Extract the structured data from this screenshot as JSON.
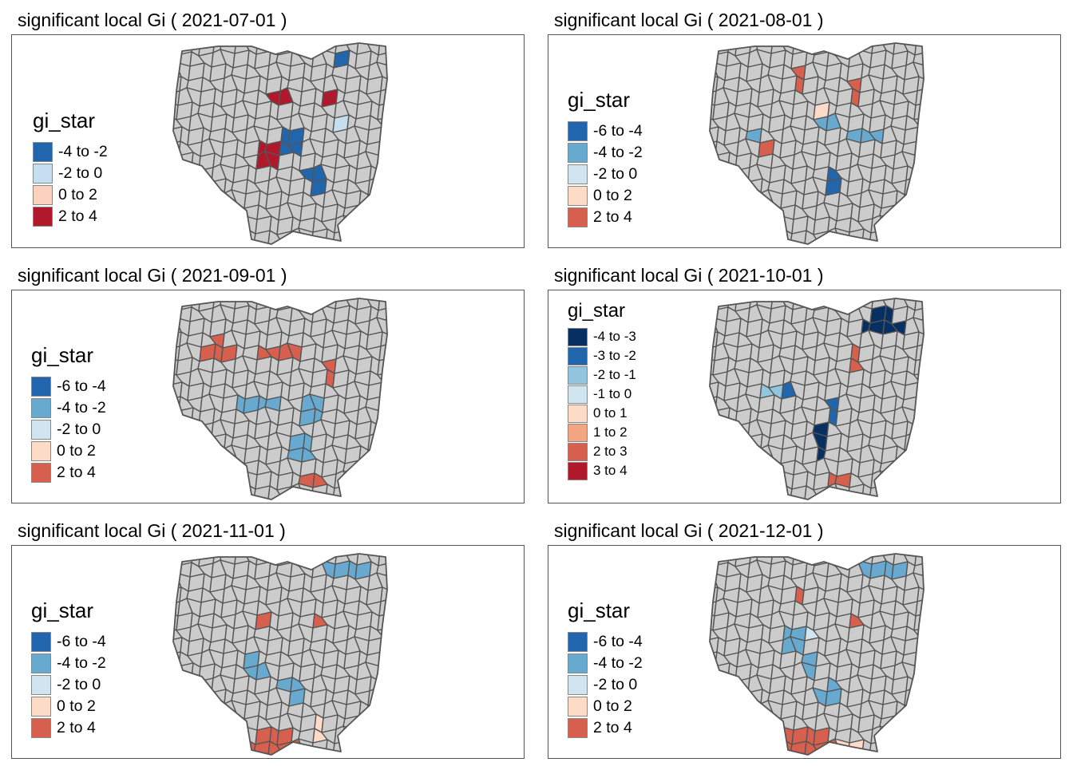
{
  "legend_title": "gi_star",
  "base_fill": "#cccccc",
  "border_color": "#555555",
  "panels": [
    {
      "title": "significant local Gi ( 2021-07-01 )",
      "legend": [
        {
          "label": "-4 to -2",
          "color": "#2166ac"
        },
        {
          "label": "-2 to 0",
          "color": "#c5dff0"
        },
        {
          "label": "0 to 2",
          "color": "#fbd2bd"
        },
        {
          "label": "2 to 4",
          "color": "#b2182b"
        }
      ]
    },
    {
      "title": "significant local Gi ( 2021-08-01 )",
      "legend": [
        {
          "label": "-6 to -4",
          "color": "#2166ac"
        },
        {
          "label": "-4 to -2",
          "color": "#67a9cf"
        },
        {
          "label": "-2 to 0",
          "color": "#d1e5f0"
        },
        {
          "label": "0 to 2",
          "color": "#fddbc7"
        },
        {
          "label": "2 to 4",
          "color": "#d6604d"
        }
      ]
    },
    {
      "title": "significant local Gi ( 2021-09-01 )",
      "legend": [
        {
          "label": "-6 to -4",
          "color": "#2166ac"
        },
        {
          "label": "-4 to -2",
          "color": "#67a9cf"
        },
        {
          "label": "-2 to 0",
          "color": "#d1e5f0"
        },
        {
          "label": "0 to 2",
          "color": "#fddbc7"
        },
        {
          "label": "2 to 4",
          "color": "#d6604d"
        }
      ]
    },
    {
      "title": "significant local Gi ( 2021-10-01 )",
      "legend": [
        {
          "label": "-4 to -3",
          "color": "#053061"
        },
        {
          "label": "-3 to -2",
          "color": "#2166ac"
        },
        {
          "label": "-2 to -1",
          "color": "#92c5de"
        },
        {
          "label": "-1 to 0",
          "color": "#d1e5f0"
        },
        {
          "label": "0 to 1",
          "color": "#fddbc7"
        },
        {
          "label": "1 to 2",
          "color": "#f4a582"
        },
        {
          "label": "2 to 3",
          "color": "#d6604d"
        },
        {
          "label": "3 to 4",
          "color": "#b2182b"
        }
      ]
    },
    {
      "title": "significant local Gi ( 2021-11-01 )",
      "legend": [
        {
          "label": "-6 to -4",
          "color": "#2166ac"
        },
        {
          "label": "-4 to -2",
          "color": "#67a9cf"
        },
        {
          "label": "-2 to 0",
          "color": "#d1e5f0"
        },
        {
          "label": "0 to 2",
          "color": "#fddbc7"
        },
        {
          "label": "2 to 4",
          "color": "#d6604d"
        }
      ]
    },
    {
      "title": "significant local Gi ( 2021-12-01 )",
      "legend": [
        {
          "label": "-6 to -4",
          "color": "#2166ac"
        },
        {
          "label": "-4 to -2",
          "color": "#67a9cf"
        },
        {
          "label": "-2 to 0",
          "color": "#d1e5f0"
        },
        {
          "label": "0 to 2",
          "color": "#fddbc7"
        },
        {
          "label": "2 to 4",
          "color": "#d6604d"
        }
      ]
    }
  ]
}
